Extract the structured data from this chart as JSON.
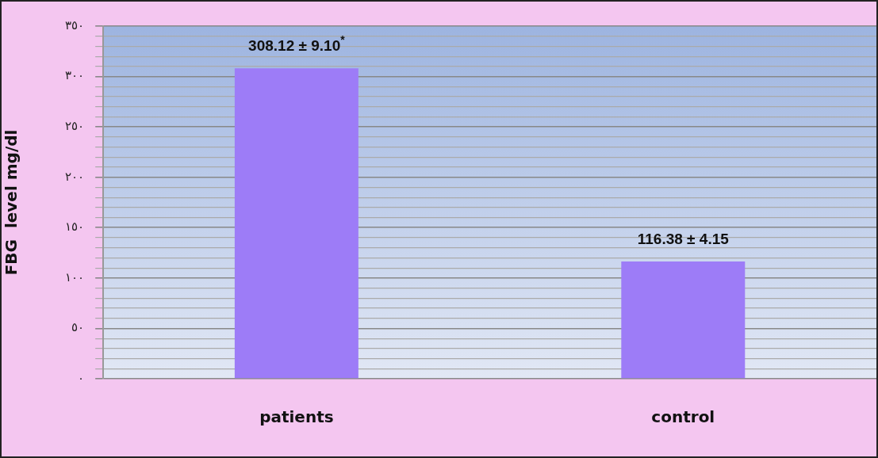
{
  "chart_data": {
    "type": "bar",
    "ylabel": "FBG  level mg/dl",
    "categories": [
      "patients",
      "control"
    ],
    "values": [
      308.12,
      116.38
    ],
    "color": "#9d7cf7",
    "value_labels": [
      "308.12 ± 9.10$^{*}$",
      "116.38 ± 4.15"
    ],
    "ylim": [
      0,
      350
    ],
    "yticks": [
      {
        "value": 0,
        "label": "٠"
      },
      {
        "value": 10,
        "label": null
      },
      {
        "value": 20,
        "label": null
      },
      {
        "value": 30,
        "label": null
      },
      {
        "value": 40,
        "label": null
      },
      {
        "value": 50,
        "label": "٥٠"
      },
      {
        "value": 60,
        "label": null
      },
      {
        "value": 70,
        "label": null
      },
      {
        "value": 80,
        "label": null
      },
      {
        "value": 90,
        "label": null
      },
      {
        "value": 100,
        "label": "١٠٠"
      },
      {
        "value": 110,
        "label": null
      },
      {
        "value": 120,
        "label": null
      },
      {
        "value": 130,
        "label": null
      },
      {
        "value": 140,
        "label": null
      },
      {
        "value": 150,
        "label": "١٥٠"
      },
      {
        "value": 160,
        "label": null
      },
      {
        "value": 170,
        "label": null
      },
      {
        "value": 180,
        "label": null
      },
      {
        "value": 190,
        "label": null
      },
      {
        "value": 200,
        "label": "٢٠٠"
      },
      {
        "value": 210,
        "label": null
      },
      {
        "value": 220,
        "label": null
      },
      {
        "value": 230,
        "label": null
      },
      {
        "value": 240,
        "label": null
      },
      {
        "value": 250,
        "label": "٢٥٠"
      },
      {
        "value": 260,
        "label": null
      },
      {
        "value": 270,
        "label": null
      },
      {
        "value": 280,
        "label": null
      },
      {
        "value": 290,
        "label": null
      },
      {
        "value": 300,
        "label": "٣٠٠"
      },
      {
        "value": 310,
        "label": null
      },
      {
        "value": 320,
        "label": null
      },
      {
        "value": 330,
        "label": null
      },
      {
        "value": 340,
        "label": null
      },
      {
        "value": 350,
        "label": "٣٥٠"
      }
    ],
    "grid": "y",
    "legend": false
  }
}
